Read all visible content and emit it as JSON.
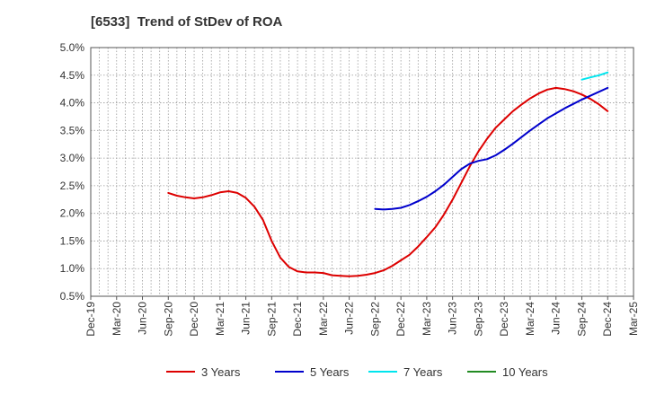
{
  "chart_data": {
    "type": "line",
    "title": "[6533]  Trend of StDev of ROA",
    "xlabel": "",
    "ylabel": "",
    "x_ticks": [
      "Dec-19",
      "Mar-20",
      "Jun-20",
      "Sep-20",
      "Dec-20",
      "Mar-21",
      "Jun-21",
      "Sep-21",
      "Dec-21",
      "Mar-22",
      "Jun-22",
      "Sep-22",
      "Dec-22",
      "Mar-23",
      "Jun-23",
      "Sep-23",
      "Dec-23",
      "Mar-24",
      "Jun-24",
      "Sep-24",
      "Dec-24",
      "Mar-25"
    ],
    "y_ticks": [
      "0.5%",
      "1.0%",
      "1.5%",
      "2.0%",
      "2.5%",
      "3.0%",
      "3.5%",
      "4.0%",
      "4.5%",
      "5.0%"
    ],
    "ylim": [
      0.5,
      5.0
    ],
    "y_unit": "%",
    "grid": true,
    "legend_position": "bottom",
    "series": [
      {
        "name": "3 Years",
        "color": "#dd0000",
        "points": [
          [
            "Sep-20",
            2.37
          ],
          [
            "Oct-20",
            2.32
          ],
          [
            "Nov-20",
            2.29
          ],
          [
            "Dec-20",
            2.27
          ],
          [
            "Jan-21",
            2.29
          ],
          [
            "Feb-21",
            2.33
          ],
          [
            "Mar-21",
            2.38
          ],
          [
            "Apr-21",
            2.4
          ],
          [
            "May-21",
            2.37
          ],
          [
            "Jun-21",
            2.28
          ],
          [
            "Jul-21",
            2.12
          ],
          [
            "Aug-21",
            1.88
          ],
          [
            "Sep-21",
            1.5
          ],
          [
            "Oct-21",
            1.2
          ],
          [
            "Nov-21",
            1.03
          ],
          [
            "Dec-21",
            0.95
          ],
          [
            "Jan-22",
            0.93
          ],
          [
            "Feb-22",
            0.93
          ],
          [
            "Mar-22",
            0.92
          ],
          [
            "Apr-22",
            0.88
          ],
          [
            "May-22",
            0.87
          ],
          [
            "Jun-22",
            0.86
          ],
          [
            "Jul-22",
            0.87
          ],
          [
            "Aug-22",
            0.89
          ],
          [
            "Sep-22",
            0.92
          ],
          [
            "Oct-22",
            0.97
          ],
          [
            "Nov-22",
            1.05
          ],
          [
            "Dec-22",
            1.15
          ],
          [
            "Jan-23",
            1.25
          ],
          [
            "Feb-23",
            1.4
          ],
          [
            "Mar-23",
            1.57
          ],
          [
            "Apr-23",
            1.75
          ],
          [
            "May-23",
            1.98
          ],
          [
            "Jun-23",
            2.25
          ],
          [
            "Jul-23",
            2.55
          ],
          [
            "Aug-23",
            2.85
          ],
          [
            "Sep-23",
            3.12
          ],
          [
            "Oct-23",
            3.35
          ],
          [
            "Nov-23",
            3.55
          ],
          [
            "Dec-23",
            3.7
          ],
          [
            "Jan-24",
            3.85
          ],
          [
            "Feb-24",
            3.97
          ],
          [
            "Mar-24",
            4.08
          ],
          [
            "Apr-24",
            4.17
          ],
          [
            "May-24",
            4.24
          ],
          [
            "Jun-24",
            4.27
          ],
          [
            "Jul-24",
            4.25
          ],
          [
            "Aug-24",
            4.21
          ],
          [
            "Sep-24",
            4.15
          ],
          [
            "Oct-24",
            4.07
          ],
          [
            "Nov-24",
            3.97
          ],
          [
            "Dec-24",
            3.85
          ]
        ]
      },
      {
        "name": "5 Years",
        "color": "#0000cc",
        "points": [
          [
            "Sep-22",
            2.08
          ],
          [
            "Oct-22",
            2.07
          ],
          [
            "Nov-22",
            2.08
          ],
          [
            "Dec-22",
            2.1
          ],
          [
            "Jan-23",
            2.15
          ],
          [
            "Feb-23",
            2.22
          ],
          [
            "Mar-23",
            2.3
          ],
          [
            "Apr-23",
            2.4
          ],
          [
            "May-23",
            2.52
          ],
          [
            "Jun-23",
            2.66
          ],
          [
            "Jul-23",
            2.8
          ],
          [
            "Aug-23",
            2.9
          ],
          [
            "Sep-23",
            2.95
          ],
          [
            "Oct-23",
            2.98
          ],
          [
            "Nov-23",
            3.05
          ],
          [
            "Dec-23",
            3.15
          ],
          [
            "Jan-24",
            3.26
          ],
          [
            "Feb-24",
            3.38
          ],
          [
            "Mar-24",
            3.5
          ],
          [
            "Apr-24",
            3.61
          ],
          [
            "May-24",
            3.72
          ],
          [
            "Jun-24",
            3.81
          ],
          [
            "Jul-24",
            3.9
          ],
          [
            "Aug-24",
            3.98
          ],
          [
            "Sep-24",
            4.06
          ],
          [
            "Oct-24",
            4.13
          ],
          [
            "Nov-24",
            4.2
          ],
          [
            "Dec-24",
            4.27
          ]
        ]
      },
      {
        "name": "7 Years",
        "color": "#00e5ee",
        "points": [
          [
            "Sep-24",
            4.42
          ],
          [
            "Oct-24",
            4.46
          ],
          [
            "Nov-24",
            4.5
          ],
          [
            "Dec-24",
            4.55
          ]
        ]
      },
      {
        "name": "10 Years",
        "color": "#228b22",
        "points": []
      }
    ]
  }
}
